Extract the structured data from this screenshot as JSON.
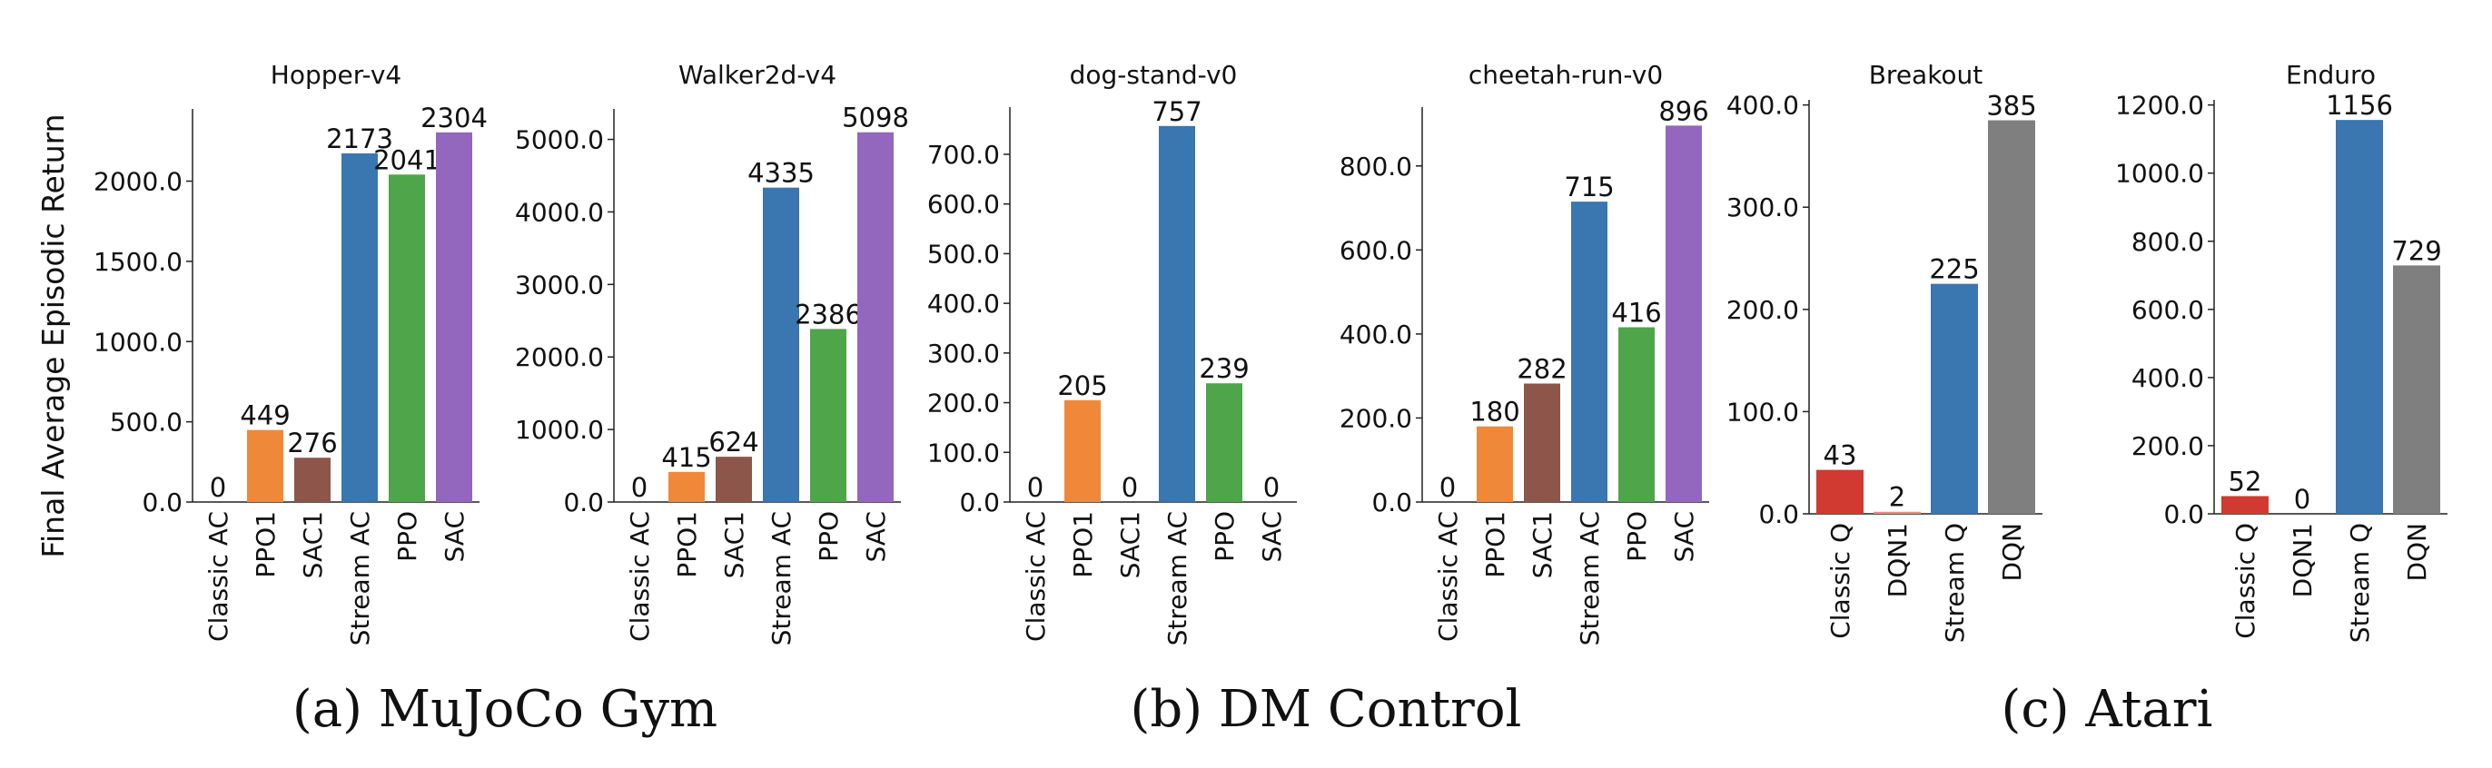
{
  "figure": {
    "ylabel": "Final Average Episodic Return",
    "captions": [
      "(a) MuJoCo Gym",
      "(b) DM Control",
      "(c) Atari"
    ]
  },
  "colors": {
    "Classic AC": "#d62728",
    "PPO1": "#f0883a",
    "SAC1": "#8c564b",
    "Stream AC": "#3a76af",
    "PPO": "#4fa54a",
    "SAC": "#9367bd",
    "Classic Q": "#d03a31",
    "DQN1": "#ef8a82",
    "Stream Q": "#3a76af",
    "DQN": "#7f7f7f"
  },
  "chart_data": [
    {
      "type": "bar",
      "title": "Hopper-v4",
      "group": "(a) MuJoCo Gym",
      "categories": [
        "Classic AC",
        "PPO1",
        "SAC1",
        "Stream AC",
        "PPO",
        "SAC"
      ],
      "values": [
        0,
        449,
        276,
        2173,
        2041,
        2304
      ],
      "labels": [
        "0",
        "449",
        "276",
        "2173",
        "2041",
        "2304"
      ],
      "ylim": [
        0,
        2450
      ],
      "yticks": [
        0,
        500,
        1000,
        1500,
        2000
      ],
      "ytick_labels": [
        "0.0",
        "500.0",
        "1000.0",
        "1500.0",
        "2000.0"
      ],
      "ylabel": "Final Average Episodic Return"
    },
    {
      "type": "bar",
      "title": "Walker2d-v4",
      "group": "(a) MuJoCo Gym",
      "categories": [
        "Classic AC",
        "PPO1",
        "SAC1",
        "Stream AC",
        "PPO",
        "SAC"
      ],
      "values": [
        0,
        415,
        624,
        4335,
        2386,
        5098
      ],
      "labels": [
        "0",
        "415",
        "624",
        "4335",
        "2386",
        "5098"
      ],
      "ylim": [
        0,
        5420
      ],
      "yticks": [
        0,
        1000,
        2000,
        3000,
        4000,
        5000
      ],
      "ytick_labels": [
        "0.0",
        "1000.0",
        "2000.0",
        "3000.0",
        "4000.0",
        "5000.0"
      ]
    },
    {
      "type": "bar",
      "title": "dog-stand-v0",
      "group": "(b) DM Control",
      "categories": [
        "Classic AC",
        "PPO1",
        "SAC1",
        "Stream AC",
        "PPO",
        "SAC"
      ],
      "values": [
        0,
        205,
        0,
        757,
        239,
        0
      ],
      "labels": [
        "0",
        "205",
        "0",
        "757",
        "239",
        "0"
      ],
      "ylim": [
        0,
        795
      ],
      "yticks": [
        0,
        100,
        200,
        300,
        400,
        500,
        600,
        700
      ],
      "ytick_labels": [
        "0.0",
        "100.0",
        "200.0",
        "300.0",
        "400.0",
        "500.0",
        "600.0",
        "700.0"
      ]
    },
    {
      "type": "bar",
      "title": "cheetah-run-v0",
      "group": "(b) DM Control",
      "categories": [
        "Classic AC",
        "PPO1",
        "SAC1",
        "Stream AC",
        "PPO",
        "SAC"
      ],
      "values": [
        0,
        180,
        282,
        715,
        416,
        896
      ],
      "labels": [
        "0",
        "180",
        "282",
        "715",
        "416",
        "896"
      ],
      "ylim": [
        0,
        940
      ],
      "yticks": [
        0,
        200,
        400,
        600,
        800
      ],
      "ytick_labels": [
        "0.0",
        "200.0",
        "400.0",
        "600.0",
        "800.0"
      ]
    },
    {
      "type": "bar",
      "title": "Breakout",
      "group": "(c) Atari",
      "categories": [
        "Classic Q",
        "DQN1",
        "Stream Q",
        "DQN"
      ],
      "values": [
        43,
        2,
        225,
        385
      ],
      "labels": [
        "43",
        "2",
        "225",
        "385"
      ],
      "ylim": [
        0,
        405
      ],
      "yticks": [
        0,
        100,
        200,
        300,
        400
      ],
      "ytick_labels": [
        "0.0",
        "100.0",
        "200.0",
        "300.0",
        "400.0"
      ]
    },
    {
      "type": "bar",
      "title": "Enduro",
      "group": "(c) Atari",
      "categories": [
        "Classic Q",
        "DQN1",
        "Stream Q",
        "DQN"
      ],
      "values": [
        52,
        0,
        1156,
        729
      ],
      "labels": [
        "52",
        "0",
        "1156",
        "729"
      ],
      "ylim": [
        0,
        1215
      ],
      "yticks": [
        0,
        200,
        400,
        600,
        800,
        1000,
        1200
      ],
      "ytick_labels": [
        "0.0",
        "200.0",
        "400.0",
        "600.0",
        "800.0",
        "1000.0",
        "1200.0"
      ]
    }
  ]
}
